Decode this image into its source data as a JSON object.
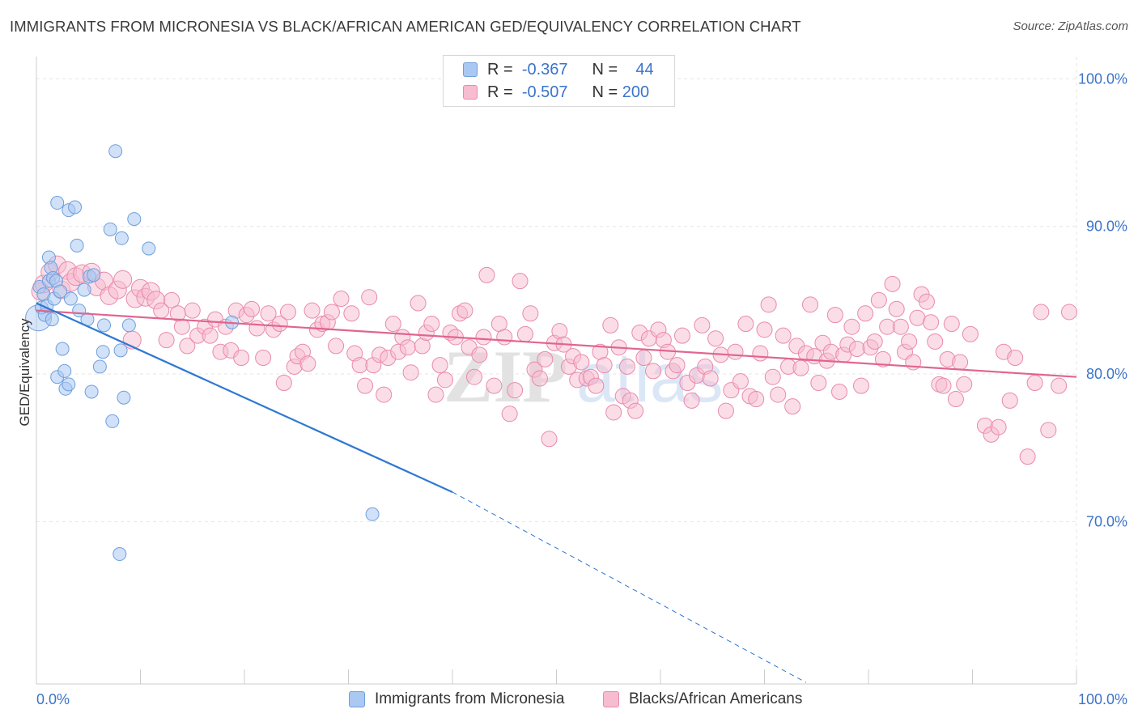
{
  "header": {
    "title": "IMMIGRANTS FROM MICRONESIA VS BLACK/AFRICAN AMERICAN GED/EQUIVALENCY CORRELATION CHART",
    "source": "Source: ZipAtlas.com"
  },
  "legend": {
    "r_label": "R =",
    "n_label": "N =",
    "series": [
      {
        "r": "-0.367",
        "n": "44"
      },
      {
        "r": "-0.507",
        "n": "200"
      }
    ]
  },
  "watermark": {
    "zip": "ZIP",
    "atlas": "atlas"
  },
  "colors": {
    "blue_fill": "#a9c8f2",
    "blue_stroke": "#6f9fdc",
    "blue_line": "#2f78d4",
    "pink_fill": "#f8bcd0",
    "pink_stroke": "#e98aab",
    "pink_line": "#e0658f",
    "tick_label": "#3b74c9",
    "grid": "#e6e6e6"
  },
  "chart_data": {
    "type": "scatter",
    "title": "IMMIGRANTS FROM MICRONESIA VS BLACK/AFRICAN AMERICAN GED/EQUIVALENCY CORRELATION CHART",
    "xlabel": "",
    "ylabel": "GED/Equivalency",
    "xlim": [
      0,
      100
    ],
    "ylim": [
      59.0,
      101.5
    ],
    "x_tick_labels": [
      "0.0%",
      "100.0%"
    ],
    "y_ticks": [
      70,
      80,
      90,
      100
    ],
    "y_tick_labels": [
      "70.0%",
      "80.0%",
      "90.0%",
      "100.0%"
    ],
    "series": [
      {
        "name": "Immigrants from Micronesia",
        "color": "blue",
        "trend": {
          "x0": 0,
          "y0": 84.8,
          "x1": 40,
          "y1": 72.0,
          "dash_to_x": 74,
          "dash_to_y": 59.1
        },
        "points": [
          [
            0.3,
            85.9
          ],
          [
            0.5,
            84.5
          ],
          [
            0.7,
            85.4
          ],
          [
            0.8,
            84.0
          ],
          [
            1.0,
            84.6
          ],
          [
            1.2,
            86.3
          ],
          [
            1.2,
            87.9
          ],
          [
            1.4,
            87.2
          ],
          [
            1.6,
            86.5
          ],
          [
            1.9,
            86.3
          ],
          [
            1.7,
            85.1
          ],
          [
            1.5,
            83.7
          ],
          [
            2.0,
            91.6
          ],
          [
            2.0,
            79.8
          ],
          [
            2.3,
            85.6
          ],
          [
            2.5,
            81.7
          ],
          [
            2.7,
            80.2
          ],
          [
            2.8,
            79.0
          ],
          [
            3.1,
            91.1
          ],
          [
            3.1,
            79.3
          ],
          [
            3.3,
            85.1
          ],
          [
            3.7,
            91.3
          ],
          [
            3.9,
            88.7
          ],
          [
            4.1,
            84.3
          ],
          [
            4.6,
            85.7
          ],
          [
            4.9,
            83.7
          ],
          [
            5.1,
            86.6
          ],
          [
            5.3,
            78.8
          ],
          [
            5.5,
            86.7
          ],
          [
            6.1,
            80.5
          ],
          [
            6.4,
            81.5
          ],
          [
            6.5,
            83.3
          ],
          [
            7.1,
            89.8
          ],
          [
            7.3,
            76.8
          ],
          [
            7.6,
            95.1
          ],
          [
            8.1,
            81.6
          ],
          [
            8.2,
            89.2
          ],
          [
            8.4,
            78.4
          ],
          [
            8.9,
            83.3
          ],
          [
            9.4,
            90.5
          ],
          [
            10.8,
            88.5
          ],
          [
            18.8,
            83.5
          ],
          [
            32.3,
            70.5
          ],
          [
            8.0,
            67.8
          ]
        ]
      },
      {
        "name": "Blacks/African Americans",
        "color": "pink",
        "trend": {
          "x0": 0,
          "y0": 84.3,
          "x1": 100,
          "y1": 79.8
        },
        "points": [
          [
            0.4,
            85.6
          ],
          [
            0.7,
            86.1
          ],
          [
            1.3,
            86.9
          ],
          [
            2.0,
            87.4
          ],
          [
            2.4,
            85.7
          ],
          [
            3.0,
            87.0
          ],
          [
            3.3,
            86.2
          ],
          [
            3.8,
            86.6
          ],
          [
            4.4,
            86.8
          ],
          [
            5.3,
            86.9
          ],
          [
            5.8,
            85.9
          ],
          [
            6.5,
            86.3
          ],
          [
            7.0,
            85.3
          ],
          [
            7.8,
            85.7
          ],
          [
            8.3,
            86.4
          ],
          [
            9.2,
            82.3
          ],
          [
            9.5,
            85.1
          ],
          [
            10.0,
            85.8
          ],
          [
            10.5,
            85.2
          ],
          [
            11.0,
            85.6
          ],
          [
            11.5,
            85.0
          ],
          [
            12.0,
            84.3
          ],
          [
            12.5,
            82.3
          ],
          [
            13.0,
            85.0
          ],
          [
            13.6,
            84.1
          ],
          [
            14.0,
            83.2
          ],
          [
            14.5,
            81.9
          ],
          [
            15.0,
            84.3
          ],
          [
            15.5,
            82.6
          ],
          [
            16.2,
            83.2
          ],
          [
            16.7,
            82.6
          ],
          [
            17.2,
            83.7
          ],
          [
            17.7,
            81.5
          ],
          [
            18.2,
            83.2
          ],
          [
            18.7,
            81.6
          ],
          [
            19.2,
            84.3
          ],
          [
            19.7,
            81.1
          ],
          [
            20.2,
            84.0
          ],
          [
            20.7,
            84.4
          ],
          [
            21.2,
            83.1
          ],
          [
            21.8,
            81.1
          ],
          [
            22.3,
            84.1
          ],
          [
            22.8,
            83.0
          ],
          [
            23.4,
            83.4
          ],
          [
            23.8,
            79.4
          ],
          [
            24.2,
            84.2
          ],
          [
            24.8,
            80.5
          ],
          [
            25.1,
            81.2
          ],
          [
            25.6,
            81.5
          ],
          [
            26.1,
            80.7
          ],
          [
            26.5,
            84.3
          ],
          [
            27.0,
            83.0
          ],
          [
            27.5,
            83.4
          ],
          [
            28.0,
            83.5
          ],
          [
            28.4,
            84.2
          ],
          [
            28.8,
            81.9
          ],
          [
            29.3,
            85.1
          ],
          [
            30.3,
            84.1
          ],
          [
            30.6,
            81.4
          ],
          [
            31.1,
            80.6
          ],
          [
            31.6,
            79.2
          ],
          [
            32.0,
            85.2
          ],
          [
            32.4,
            80.6
          ],
          [
            33.0,
            81.3
          ],
          [
            33.4,
            78.6
          ],
          [
            33.8,
            81.1
          ],
          [
            34.3,
            83.4
          ],
          [
            34.8,
            81.5
          ],
          [
            35.2,
            82.5
          ],
          [
            35.7,
            81.8
          ],
          [
            36.0,
            80.1
          ],
          [
            36.7,
            84.8
          ],
          [
            37.1,
            81.9
          ],
          [
            37.5,
            82.8
          ],
          [
            38.0,
            83.4
          ],
          [
            38.4,
            78.6
          ],
          [
            38.8,
            80.6
          ],
          [
            39.3,
            79.6
          ],
          [
            39.8,
            82.8
          ],
          [
            40.3,
            82.5
          ],
          [
            40.7,
            84.1
          ],
          [
            41.2,
            84.3
          ],
          [
            41.6,
            81.8
          ],
          [
            42.1,
            79.8
          ],
          [
            42.6,
            81.3
          ],
          [
            43.0,
            82.5
          ],
          [
            43.3,
            86.7
          ],
          [
            44.0,
            79.2
          ],
          [
            44.5,
            83.4
          ],
          [
            45.0,
            82.5
          ],
          [
            45.5,
            77.3
          ],
          [
            46.0,
            78.9
          ],
          [
            46.5,
            86.3
          ],
          [
            47.0,
            82.7
          ],
          [
            47.5,
            84.1
          ],
          [
            47.9,
            80.3
          ],
          [
            48.4,
            79.7
          ],
          [
            48.9,
            81.0
          ],
          [
            49.3,
            75.6
          ],
          [
            49.8,
            82.1
          ],
          [
            50.3,
            82.9
          ],
          [
            50.7,
            82.0
          ],
          [
            51.2,
            80.5
          ],
          [
            51.6,
            81.2
          ],
          [
            52.0,
            79.6
          ],
          [
            52.4,
            80.8
          ],
          [
            52.9,
            79.7
          ],
          [
            53.3,
            79.8
          ],
          [
            53.8,
            79.2
          ],
          [
            54.2,
            81.5
          ],
          [
            54.6,
            80.6
          ],
          [
            55.2,
            83.3
          ],
          [
            55.5,
            77.4
          ],
          [
            56.0,
            81.8
          ],
          [
            56.4,
            78.5
          ],
          [
            56.8,
            80.5
          ],
          [
            57.1,
            78.2
          ],
          [
            57.6,
            77.5
          ],
          [
            58.0,
            82.8
          ],
          [
            58.4,
            81.1
          ],
          [
            58.9,
            82.4
          ],
          [
            59.3,
            80.2
          ],
          [
            59.8,
            83.0
          ],
          [
            60.3,
            82.3
          ],
          [
            60.7,
            81.5
          ],
          [
            61.2,
            80.2
          ],
          [
            61.6,
            80.6
          ],
          [
            62.1,
            82.6
          ],
          [
            62.6,
            79.4
          ],
          [
            63.0,
            78.2
          ],
          [
            63.5,
            79.9
          ],
          [
            64.0,
            83.3
          ],
          [
            64.3,
            80.5
          ],
          [
            64.8,
            79.7
          ],
          [
            65.3,
            82.4
          ],
          [
            65.8,
            81.3
          ],
          [
            66.3,
            77.5
          ],
          [
            66.8,
            78.9
          ],
          [
            67.2,
            81.5
          ],
          [
            67.7,
            79.5
          ],
          [
            68.2,
            83.4
          ],
          [
            68.6,
            78.5
          ],
          [
            69.2,
            78.3
          ],
          [
            69.6,
            81.4
          ],
          [
            70.0,
            83.0
          ],
          [
            70.4,
            84.7
          ],
          [
            70.8,
            79.8
          ],
          [
            71.3,
            78.6
          ],
          [
            71.8,
            82.6
          ],
          [
            72.3,
            80.5
          ],
          [
            72.7,
            77.8
          ],
          [
            73.1,
            81.9
          ],
          [
            73.5,
            80.4
          ],
          [
            74.0,
            81.4
          ],
          [
            74.4,
            84.7
          ],
          [
            74.8,
            81.2
          ],
          [
            75.2,
            79.4
          ],
          [
            75.6,
            82.1
          ],
          [
            76.0,
            80.9
          ],
          [
            76.4,
            81.5
          ],
          [
            76.8,
            84.0
          ],
          [
            77.2,
            78.8
          ],
          [
            77.6,
            81.3
          ],
          [
            78.0,
            82.0
          ],
          [
            78.4,
            83.2
          ],
          [
            78.9,
            81.7
          ],
          [
            79.3,
            79.2
          ],
          [
            79.7,
            84.1
          ],
          [
            80.2,
            81.8
          ],
          [
            80.6,
            82.2
          ],
          [
            81.0,
            85.0
          ],
          [
            81.4,
            81.0
          ],
          [
            81.8,
            83.2
          ],
          [
            82.3,
            86.1
          ],
          [
            82.7,
            84.4
          ],
          [
            83.1,
            83.2
          ],
          [
            83.5,
            81.5
          ],
          [
            83.9,
            82.2
          ],
          [
            84.3,
            80.8
          ],
          [
            84.7,
            83.8
          ],
          [
            85.1,
            85.4
          ],
          [
            85.6,
            84.9
          ],
          [
            86.0,
            83.5
          ],
          [
            86.4,
            82.2
          ],
          [
            86.8,
            79.3
          ],
          [
            87.2,
            79.2
          ],
          [
            87.6,
            81.0
          ],
          [
            88.0,
            83.4
          ],
          [
            88.4,
            78.3
          ],
          [
            88.8,
            80.8
          ],
          [
            89.2,
            79.3
          ],
          [
            89.8,
            82.7
          ],
          [
            91.2,
            76.5
          ],
          [
            91.8,
            75.9
          ],
          [
            92.5,
            76.4
          ],
          [
            93.0,
            81.5
          ],
          [
            93.6,
            78.2
          ],
          [
            94.1,
            81.1
          ],
          [
            95.3,
            74.4
          ],
          [
            96.0,
            79.4
          ],
          [
            96.6,
            84.2
          ],
          [
            97.3,
            76.2
          ],
          [
            98.3,
            79.2
          ],
          [
            99.3,
            84.2
          ]
        ]
      }
    ]
  },
  "bottom_legend": {
    "items": [
      {
        "label": "Immigrants from Micronesia"
      },
      {
        "label": "Blacks/African Americans"
      }
    ]
  }
}
